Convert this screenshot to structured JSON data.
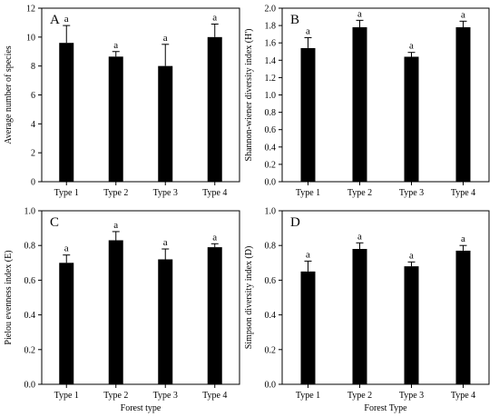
{
  "colors": {
    "bar": "#000000",
    "axis": "#000000",
    "background": "#ffffff"
  },
  "chart_data": [
    {
      "type": "bar",
      "panel_label": "A",
      "categories": [
        "Type 1",
        "Type 2",
        "Type 3",
        "Type 4"
      ],
      "values": [
        9.6,
        8.65,
        8.0,
        10.0
      ],
      "error": [
        1.2,
        0.35,
        1.5,
        0.9
      ],
      "significance": [
        "a",
        "a",
        "a",
        "a"
      ],
      "xlabel": "",
      "ylabel": "Average number of species",
      "ylim": [
        0,
        12
      ],
      "yticks": [
        0,
        2,
        4,
        6,
        8,
        10,
        12
      ],
      "ytick_labels": [
        "0",
        "2",
        "4",
        "6",
        "8",
        "10",
        "12"
      ],
      "grid": false
    },
    {
      "type": "bar",
      "panel_label": "B",
      "categories": [
        "Type 1",
        "Type 2",
        "Type 3",
        "Type 4"
      ],
      "values": [
        1.54,
        1.78,
        1.44,
        1.78
      ],
      "error": [
        0.12,
        0.08,
        0.05,
        0.07
      ],
      "significance": [
        "a",
        "a",
        "a",
        "a"
      ],
      "xlabel": "",
      "ylabel": "Shannon-wiener diversity index (H')",
      "ylim": [
        0,
        2.0
      ],
      "yticks": [
        0,
        0.2,
        0.4,
        0.6,
        0.8,
        1.0,
        1.2,
        1.4,
        1.6,
        1.8,
        2.0
      ],
      "ytick_labels": [
        "0.0",
        "0.2",
        "0.4",
        "0.6",
        "0.8",
        "1.0",
        "1.2",
        "1.4",
        "1.6",
        "1.8",
        "2.0"
      ],
      "grid": false
    },
    {
      "type": "bar",
      "panel_label": "C",
      "categories": [
        "Type 1",
        "Type 2",
        "Type 3",
        "Type 4"
      ],
      "values": [
        0.7,
        0.83,
        0.72,
        0.79
      ],
      "error": [
        0.045,
        0.05,
        0.06,
        0.02
      ],
      "significance": [
        "a",
        "a",
        "a",
        "a"
      ],
      "xlabel": "Forest type",
      "ylabel": "Pielou evenness index (E)",
      "ylim": [
        0,
        1.0
      ],
      "yticks": [
        0,
        0.2,
        0.4,
        0.6,
        0.8,
        1.0
      ],
      "ytick_labels": [
        "0.0",
        "0.2",
        "0.4",
        "0.6",
        "0.8",
        "1.0"
      ],
      "grid": false
    },
    {
      "type": "bar",
      "panel_label": "D",
      "categories": [
        "Type 1",
        "Type 2",
        "Type 3",
        "Type 4"
      ],
      "values": [
        0.65,
        0.78,
        0.68,
        0.77
      ],
      "error": [
        0.06,
        0.035,
        0.025,
        0.03
      ],
      "significance": [
        "a",
        "a",
        "a",
        "a"
      ],
      "xlabel": "Forest Type",
      "ylabel": "Simpson diversity index (D)",
      "ylim": [
        0,
        1.0
      ],
      "yticks": [
        0,
        0.2,
        0.4,
        0.6,
        0.8,
        1.0
      ],
      "ytick_labels": [
        "0.0",
        "0.2",
        "0.4",
        "0.6",
        "0.8",
        "1.0"
      ],
      "grid": false
    }
  ]
}
